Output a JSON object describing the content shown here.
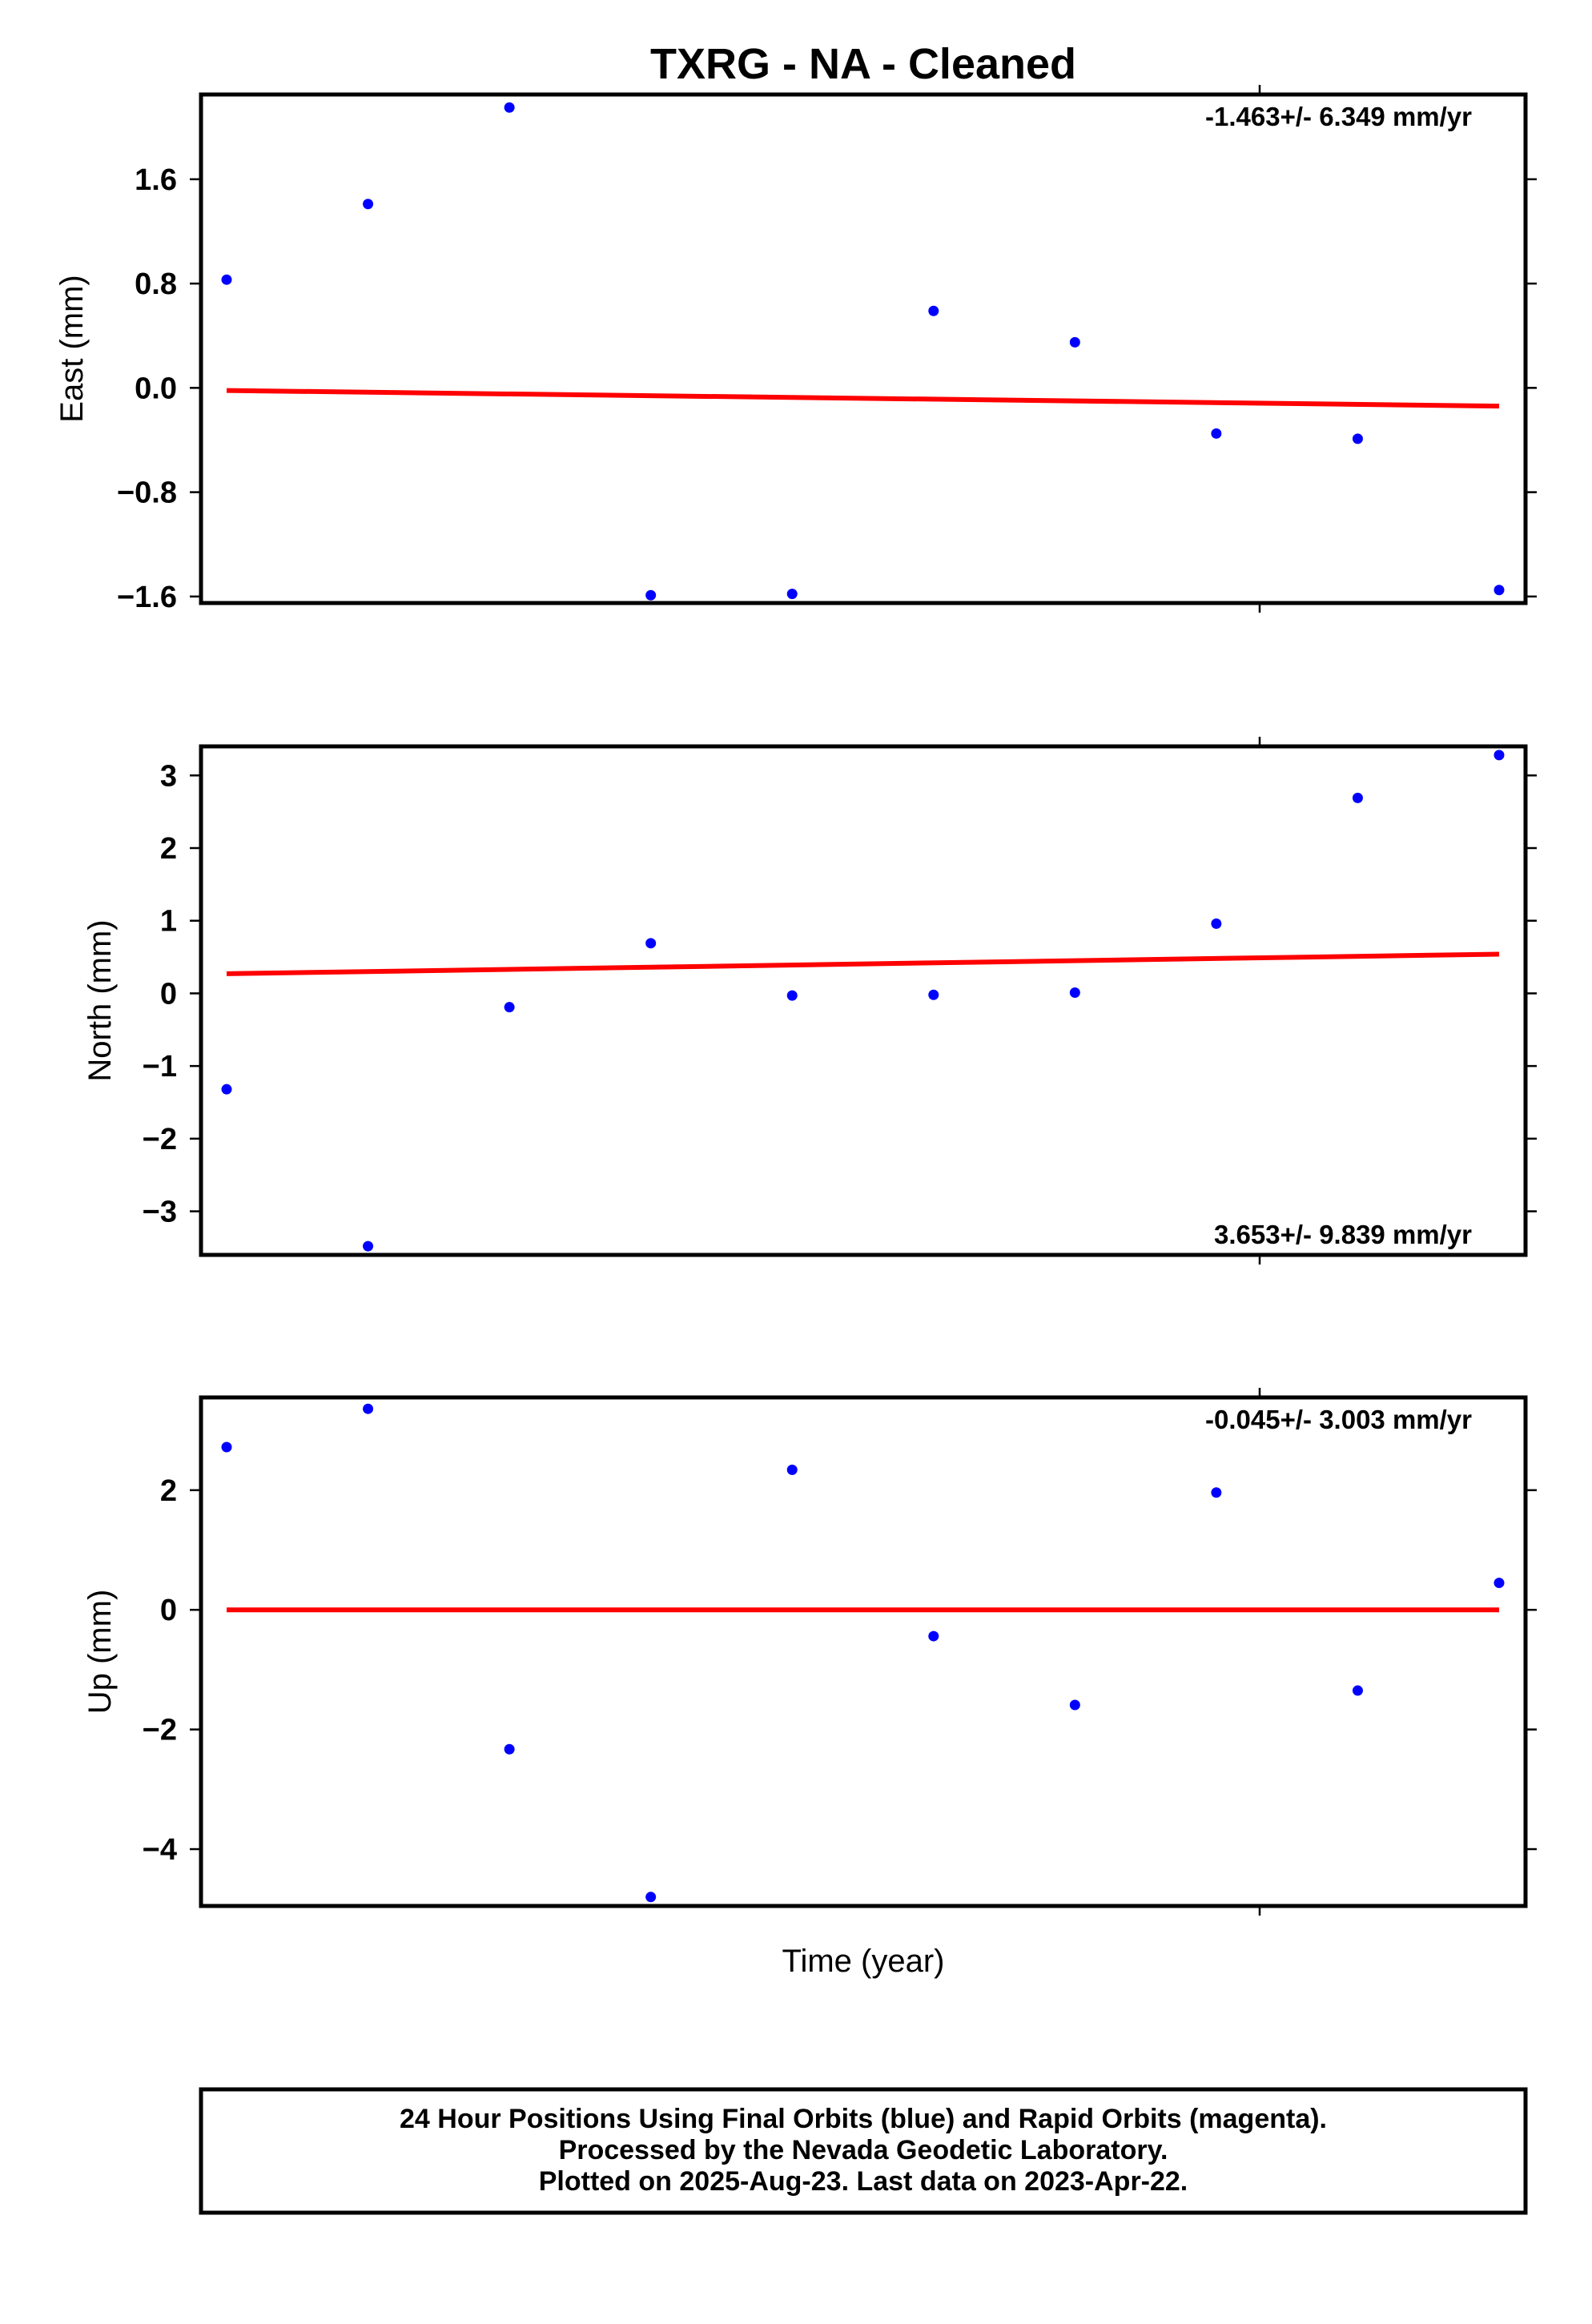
{
  "title": "TXRG  - NA - Cleaned",
  "xlabel": "Time (year)",
  "colors": {
    "points": "#0000ff",
    "fit": "#ff0000",
    "frame": "#000000"
  },
  "chart_data": [
    {
      "type": "scatter",
      "ylabel": "East (mm)",
      "rate_text": "-1.463+/- 6.349 mm/yr",
      "rate_position": "top-right",
      "ylim": [
        -1.65,
        2.25
      ],
      "yticks": [
        1.6,
        0.8,
        0.0,
        -0.8,
        -1.6
      ],
      "ytick_labels": [
        "1.6",
        "0.8",
        "0.0",
        "−0.8",
        "−1.6"
      ],
      "x": [
        0,
        1,
        2,
        3,
        4,
        5,
        6,
        7,
        8,
        9
      ],
      "values": [
        0.83,
        1.41,
        2.15,
        -1.59,
        -1.58,
        0.59,
        0.35,
        -0.35,
        -0.39,
        -1.55
      ],
      "fit": [
        -0.02,
        -0.14
      ]
    },
    {
      "type": "scatter",
      "ylabel": "North (mm)",
      "rate_text": "3.653+/- 9.839 mm/yr",
      "rate_position": "bottom-right",
      "ylim": [
        -3.6,
        3.4
      ],
      "yticks": [
        3,
        2,
        1,
        0,
        -1,
        -2,
        -3
      ],
      "ytick_labels": [
        "3",
        "2",
        "1",
        "0",
        "−1",
        "−2",
        "−3"
      ],
      "x": [
        0,
        1,
        2,
        3,
        4,
        5,
        6,
        7,
        8,
        9
      ],
      "values": [
        -1.32,
        -3.48,
        -0.19,
        0.69,
        -0.03,
        -0.02,
        0.01,
        0.96,
        2.69,
        3.28
      ],
      "fit": [
        0.27,
        0.54
      ]
    },
    {
      "type": "scatter",
      "ylabel": "Up (mm)",
      "rate_text": "-0.045+/- 3.003 mm/yr",
      "rate_position": "top-right",
      "ylim": [
        -4.95,
        3.55
      ],
      "yticks": [
        2,
        0,
        -2,
        -4
      ],
      "ytick_labels": [
        "2",
        "0",
        "−2",
        "−4"
      ],
      "x": [
        0,
        1,
        2,
        3,
        4,
        5,
        6,
        7,
        8,
        9
      ],
      "values": [
        2.72,
        3.36,
        -2.33,
        -4.8,
        2.34,
        -0.44,
        -1.59,
        1.96,
        -1.35,
        0.45
      ],
      "fit": [
        0.0,
        0.0
      ]
    }
  ],
  "footer": {
    "line1": "24 Hour Positions Using Final Orbits (blue) and Rapid Orbits (magenta).",
    "line2": "Processed by the Nevada Geodetic Laboratory.",
    "line3": "Plotted on 2025-Aug-23. Last data on 2023-Apr-22."
  }
}
